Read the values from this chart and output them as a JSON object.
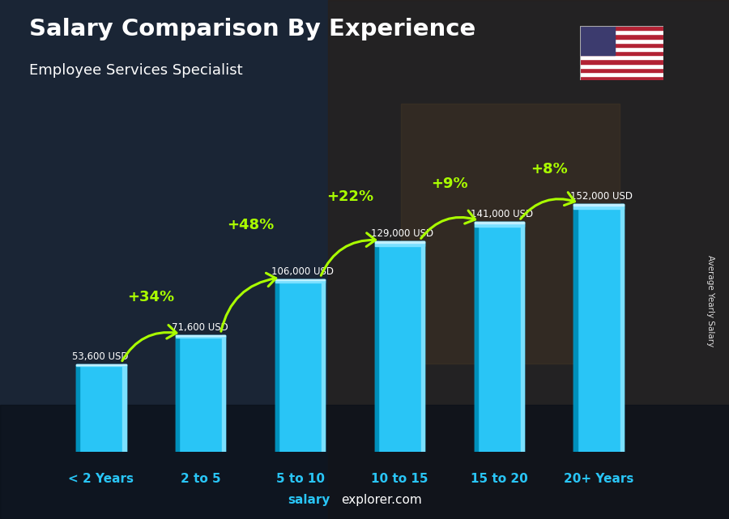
{
  "title": "Salary Comparison By Experience",
  "subtitle": "Employee Services Specialist",
  "categories": [
    "< 2 Years",
    "2 to 5",
    "5 to 10",
    "10 to 15",
    "15 to 20",
    "20+ Years"
  ],
  "values": [
    53600,
    71600,
    106000,
    129000,
    141000,
    152000
  ],
  "labels": [
    "53,600 USD",
    "71,600 USD",
    "106,000 USD",
    "129,000 USD",
    "141,000 USD",
    "152,000 USD"
  ],
  "pct_labels": [
    "+34%",
    "+48%",
    "+22%",
    "+9%",
    "+8%"
  ],
  "bar_color": "#29c5f6",
  "bar_color_dark": "#0090bb",
  "bar_color_light": "#7ae0ff",
  "bg_color": "#1a2535",
  "pct_color": "#aaff00",
  "cat_color": "#29c5f6",
  "label_color": "#ffffff",
  "footer_salary_color": "#29c5f6",
  "footer_rest_color": "#ffffff",
  "ylabel": "Average Yearly Salary",
  "ylim_max": 185000,
  "bar_width": 0.5,
  "arc_pct_offsets": [
    18000,
    28000,
    22000,
    18000,
    16000
  ],
  "label_below_arrow": true
}
